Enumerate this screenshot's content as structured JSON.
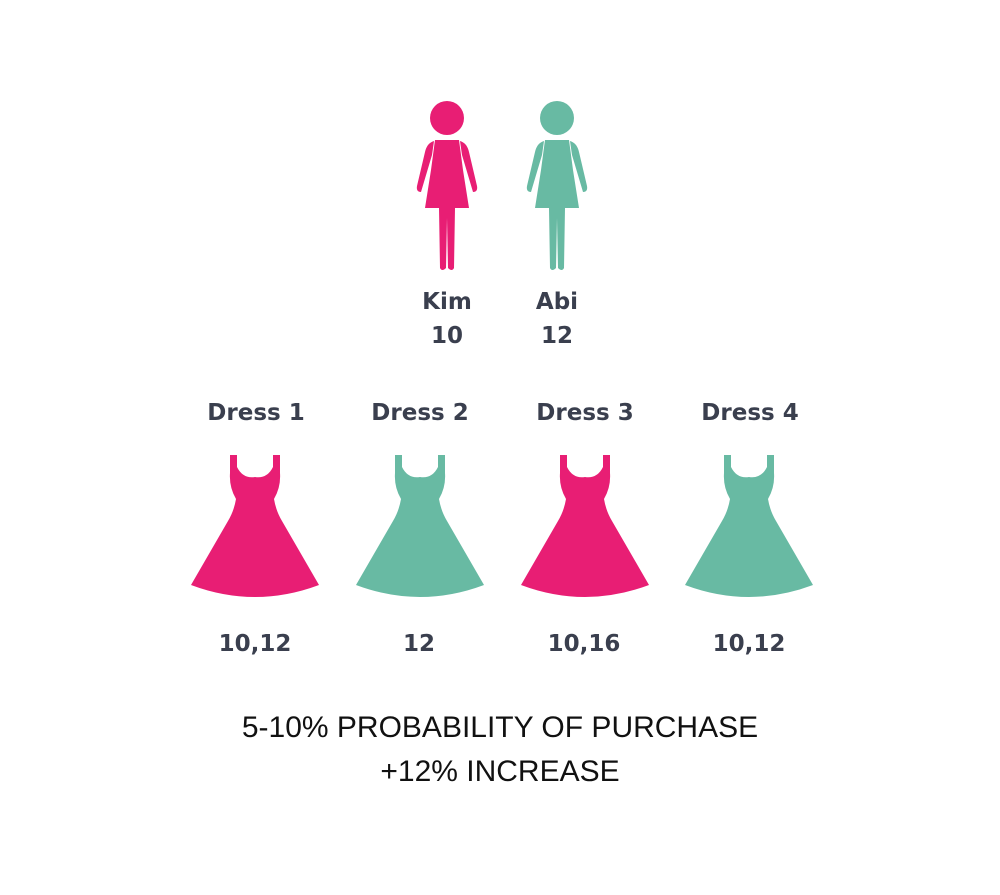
{
  "colors": {
    "pink": "#e81e74",
    "teal": "#68baa3",
    "label_text": "#3a3f4e",
    "footer_text": "#111111"
  },
  "people": [
    {
      "name": "Kim",
      "size": "10",
      "color_key": "pink",
      "icon": "woman-icon"
    },
    {
      "name": "Abi",
      "size": "12",
      "color_key": "teal",
      "icon": "woman-icon"
    }
  ],
  "dresses": [
    {
      "label": "Dress 1",
      "sizes": "10,12",
      "color_key": "pink",
      "icon": "dress-icon"
    },
    {
      "label": "Dress 2",
      "sizes": "12",
      "color_key": "teal",
      "icon": "dress-icon"
    },
    {
      "label": "Dress 3",
      "sizes": "10,16",
      "color_key": "pink",
      "icon": "dress-icon"
    },
    {
      "label": "Dress 4",
      "sizes": "10,12",
      "color_key": "teal",
      "icon": "dress-icon"
    }
  ],
  "footer": {
    "line1": "5-10% PROBABILITY OF PURCHASE",
    "line2": "+12% INCREASE"
  }
}
